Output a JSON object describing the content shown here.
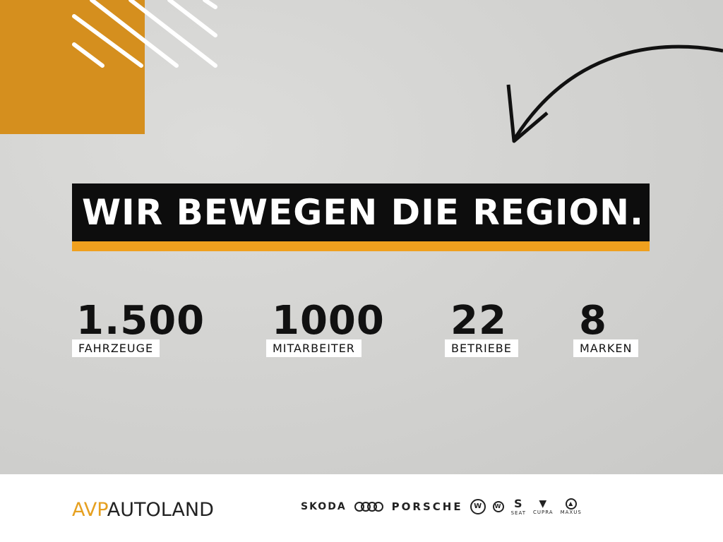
{
  "headline": "WIR BEWEGEN DIE REGION.",
  "stats": [
    {
      "value": "1.500",
      "label": "FAHRZEUGE"
    },
    {
      "value": "1000",
      "label": "MITARBEITER"
    },
    {
      "value": "22",
      "label": "BETRIEBE"
    },
    {
      "value": "8",
      "label": "MARKEN"
    }
  ],
  "footer": {
    "logo_a": "AVP",
    "logo_b": "AUTOLAND",
    "brands": [
      "SKODA",
      "Audi",
      "PORSCHE",
      "Volkswagen",
      "Volkswagen Nutzfahrzeuge",
      "SEAT",
      "CUPRA",
      "MAXUS"
    ],
    "brand_captions": {
      "seat": "SEAT",
      "cupra": "CUPRA",
      "maxus": "MAXUS"
    }
  },
  "colors": {
    "orange": "#d58f1e",
    "accent": "#f0a01e",
    "bar": "#0d0d0d"
  }
}
